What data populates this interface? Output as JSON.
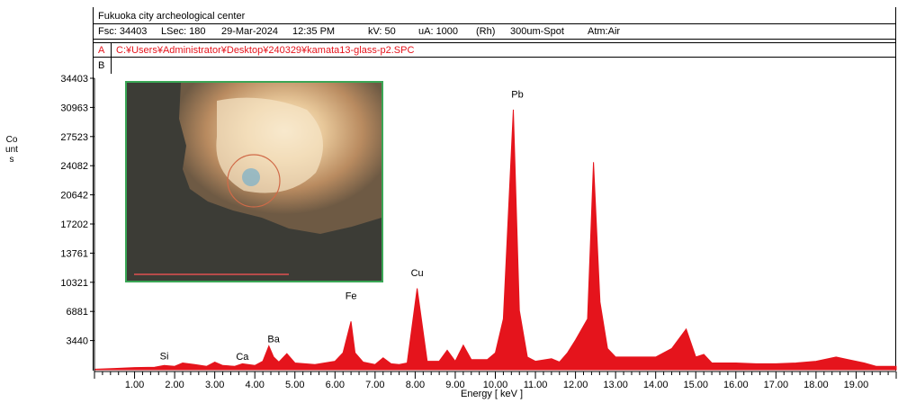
{
  "header": {
    "title_row": "Fukuoka city archeological center",
    "params": {
      "fsc": "Fsc: 34403",
      "lsec": "LSec: 180",
      "date": "29-Mar-2024",
      "time": "12:35 PM",
      "kv": "kV: 50",
      "ua": "uA: 1000",
      "target": "(Rh)",
      "spot": "300um-Spot",
      "atm": "Atm:Air"
    },
    "channel_a_label": "A",
    "channel_a_path": "C:¥Users¥Administrator¥Desktop¥240329¥kamata13-glass-p2.SPC",
    "channel_b_label": "B"
  },
  "colors": {
    "spectrum": "#e5141c",
    "path_text": "#e5141c",
    "inset_border": "#3aa655"
  },
  "chart_data": {
    "type": "area",
    "xlabel": "Energy [ keV ]",
    "ylabel": "Counts",
    "xlim": [
      0,
      20
    ],
    "ylim": [
      0,
      34403
    ],
    "x_ticks": [
      "1.00",
      "2.00",
      "3.00",
      "4.00",
      "5.00",
      "6.00",
      "7.00",
      "8.00",
      "9.00",
      "10.00",
      "11.00",
      "12.00",
      "13.00",
      "14.00",
      "15.00",
      "16.00",
      "17.00",
      "18.00",
      "19.00"
    ],
    "y_ticks": [
      "34403",
      "30963",
      "27523",
      "24082",
      "20642",
      "17202",
      "13761",
      "10321",
      "6881",
      "3440"
    ],
    "series": [
      {
        "x": [
          0.0,
          0.5,
          1.0,
          1.5,
          1.74,
          2.0,
          2.2,
          2.5,
          2.8,
          3.0,
          3.2,
          3.5,
          3.69,
          4.0,
          4.2,
          4.35,
          4.47,
          4.6,
          4.8,
          5.0,
          5.5,
          6.0,
          6.2,
          6.4,
          6.5,
          6.7,
          7.0,
          7.2,
          7.4,
          7.6,
          7.8,
          8.05,
          8.3,
          8.6,
          8.8,
          9.0,
          9.2,
          9.4,
          9.8,
          10.0,
          10.2,
          10.45,
          10.6,
          10.8,
          11.0,
          11.4,
          11.6,
          11.8,
          12.0,
          12.3,
          12.45,
          12.61,
          12.8,
          13.0,
          13.4,
          14.0,
          14.4,
          14.76,
          15.0,
          15.2,
          15.4,
          16.0,
          16.5,
          17.0,
          17.5,
          18.0,
          18.5,
          18.8,
          19.2,
          19.5,
          20.0
        ],
        "y": [
          50,
          150,
          250,
          300,
          500,
          400,
          800,
          600,
          400,
          900,
          500,
          400,
          700,
          500,
          1000,
          2800,
          1500,
          900,
          1900,
          800,
          600,
          1000,
          2000,
          5700,
          2000,
          900,
          600,
          1400,
          700,
          600,
          800,
          9600,
          1000,
          1000,
          2300,
          1000,
          2900,
          1200,
          1200,
          2000,
          6000,
          30700,
          7000,
          1500,
          1000,
          1300,
          900,
          2000,
          3500,
          6000,
          24500,
          8000,
          2500,
          1500,
          1500,
          1500,
          2500,
          4800,
          1500,
          1800,
          800,
          800,
          700,
          700,
          800,
          1000,
          1500,
          1200,
          800,
          400,
          400
        ]
      }
    ],
    "annotations": [
      {
        "text": "Si",
        "x": 1.74,
        "y": 300
      },
      {
        "text": "Ca",
        "x": 3.69,
        "y": 50
      },
      {
        "text": "Ba",
        "x": 4.47,
        "y": 1300
      },
      {
        "text": "Fe",
        "x": 6.4,
        "y": 2200
      },
      {
        "text": "Cu",
        "x": 8.05,
        "y": 1000
      },
      {
        "text": "Pb",
        "x": 10.55,
        "y": 1000
      }
    ]
  }
}
